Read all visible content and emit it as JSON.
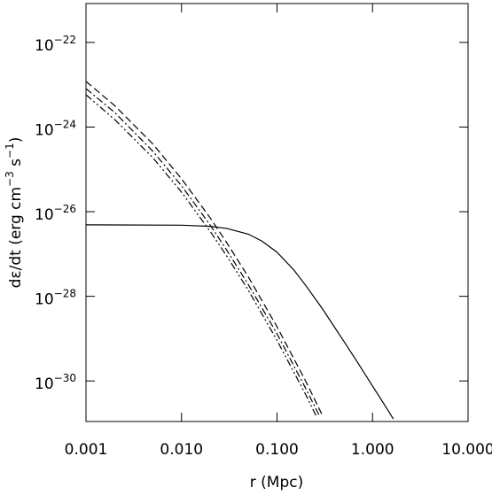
{
  "chart_data": {
    "type": "line",
    "x_label": "r (Mpc)",
    "y_label": "dε/dt (erg cm−3 s−1)",
    "xscale": "log",
    "yscale": "log",
    "xlim": [
      0.001,
      10
    ],
    "ylim": [
      1.1e-31,
      8.3e-22
    ],
    "xticks": [
      0.001,
      {
        "value": 0.01,
        "label": "0.010"
      },
      {
        "value": 0.1,
        "label": "0.100"
      },
      {
        "value": 1,
        "label": "1.000"
      },
      {
        "value": 10,
        "label": "10.000"
      }
    ],
    "yticks": [
      {
        "value": 1e-22,
        "label": "10−22"
      },
      {
        "value": 1e-24,
        "label": "10−24"
      },
      {
        "value": 1e-26,
        "label": "10−26"
      },
      {
        "value": 1e-28,
        "label": "10−28"
      },
      {
        "value": 1e-30,
        "label": "10−30"
      }
    ],
    "series": [
      {
        "style": "solid",
        "color": "#000000",
        "x": [
          0.001,
          0.01,
          0.02,
          0.03,
          0.05,
          0.07,
          0.1,
          0.15,
          0.2,
          0.3,
          0.5,
          0.7,
          1.0,
          1.5,
          1.65
        ],
        "values": [
          4.9e-27,
          4.8e-27,
          4.5e-27,
          4e-27,
          2.95e-27,
          2e-27,
          1.1e-27,
          4.2e-28,
          1.8e-28,
          5e-29,
          8.7e-30,
          2.7e-30,
          7.6e-31,
          1.8e-31,
          1.26e-31
        ]
      },
      {
        "style": "dashed",
        "color": "#000000",
        "x": [
          0.001,
          0.002,
          0.005,
          0.01,
          0.02,
          0.03,
          0.05,
          0.1,
          0.2,
          0.3
        ],
        "values": [
          1.2e-23,
          3.2e-24,
          4e-25,
          6e-26,
          7.1e-27,
          1.8e-27,
          2.9e-28,
          1.9e-29,
          9.8e-31,
          1.5e-31
        ]
      },
      {
        "style": "dashdot",
        "color": "#000000",
        "x": [
          0.001,
          0.002,
          0.005,
          0.01,
          0.02,
          0.03,
          0.05,
          0.1,
          0.2,
          0.28
        ],
        "values": [
          8.1e-24,
          2.2e-24,
          2.7e-25,
          4.1e-26,
          4.8e-27,
          1.2e-27,
          1.9e-28,
          1.3e-29,
          6.6e-31,
          1.45e-31
        ]
      },
      {
        "style": "dashdotdot",
        "color": "#000000",
        "x": [
          0.001,
          0.002,
          0.005,
          0.01,
          0.02,
          0.03,
          0.05,
          0.1,
          0.2,
          0.26
        ],
        "values": [
          5.8e-24,
          1.5e-24,
          1.9e-25,
          2.9e-26,
          3.4e-27,
          8.7e-28,
          1.4e-28,
          9.1e-30,
          4.7e-31,
          1.4e-31
        ]
      }
    ]
  }
}
